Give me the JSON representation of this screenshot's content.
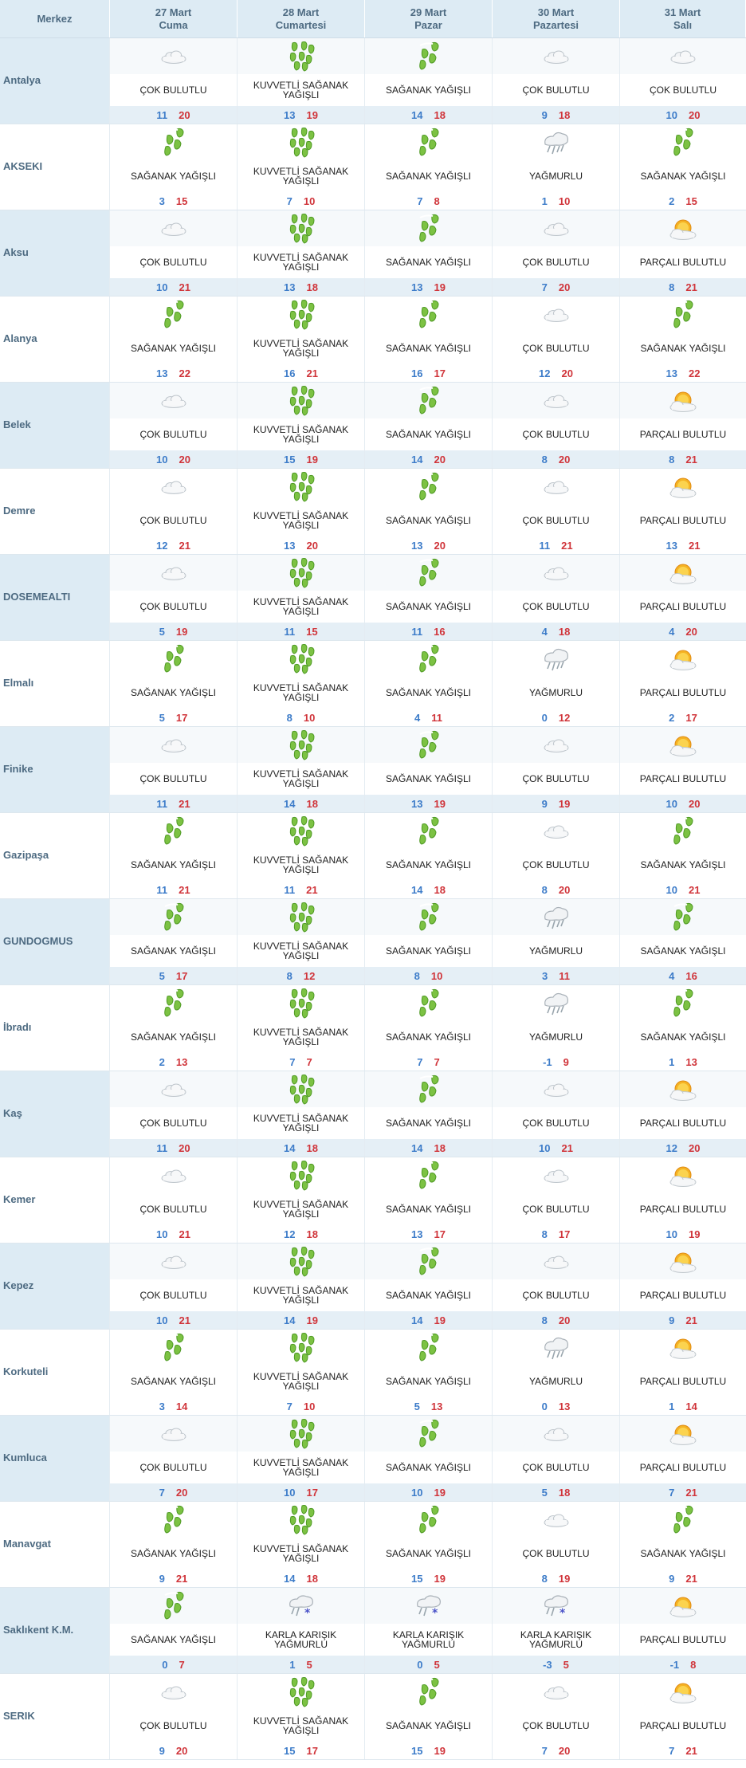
{
  "header": {
    "merkez": "Merkez",
    "days": [
      {
        "date": "27 Mart",
        "name": "Cuma"
      },
      {
        "date": "28 Mart",
        "name": "Cumartesi"
      },
      {
        "date": "29 Mart",
        "name": "Pazar"
      },
      {
        "date": "30 Mart",
        "name": "Pazartesi"
      },
      {
        "date": "31 Mart",
        "name": "Salı"
      }
    ]
  },
  "colors": {
    "low": "#3d7cc9",
    "high": "#d0343a",
    "header_bg": "#ddebf4",
    "city_text": "#4e6b82"
  },
  "rows": [
    {
      "city": "Antalya",
      "days": [
        {
          "icon": "cloud-icon",
          "desc": "ÇOK BULUTLU",
          "lo": "11",
          "hi": "20"
        },
        {
          "icon": "heavy-rain-icon",
          "desc": "KUVVETLİ SAĞANAK YAĞIŞLI",
          "lo": "13",
          "hi": "19"
        },
        {
          "icon": "rain-shower-icon",
          "desc": "SAĞANAK YAĞIŞLI",
          "lo": "14",
          "hi": "18"
        },
        {
          "icon": "cloud-icon",
          "desc": "ÇOK BULUTLU",
          "lo": "9",
          "hi": "18"
        },
        {
          "icon": "cloud-icon",
          "desc": "ÇOK BULUTLU",
          "lo": "10",
          "hi": "20"
        }
      ]
    },
    {
      "city": "AKSEKI",
      "days": [
        {
          "icon": "rain-shower-icon",
          "desc": "SAĞANAK YAĞIŞLI",
          "lo": "3",
          "hi": "15"
        },
        {
          "icon": "heavy-rain-icon",
          "desc": "KUVVETLİ SAĞANAK YAĞIŞLI",
          "lo": "7",
          "hi": "10"
        },
        {
          "icon": "rain-shower-icon",
          "desc": "SAĞANAK YAĞIŞLI",
          "lo": "7",
          "hi": "8"
        },
        {
          "icon": "rainy-cloud-icon",
          "desc": "YAĞMURLU",
          "lo": "1",
          "hi": "10"
        },
        {
          "icon": "rain-shower-icon",
          "desc": "SAĞANAK YAĞIŞLI",
          "lo": "2",
          "hi": "15"
        }
      ]
    },
    {
      "city": "Aksu",
      "days": [
        {
          "icon": "cloud-icon",
          "desc": "ÇOK BULUTLU",
          "lo": "10",
          "hi": "21"
        },
        {
          "icon": "heavy-rain-icon",
          "desc": "KUVVETLİ SAĞANAK YAĞIŞLI",
          "lo": "13",
          "hi": "18"
        },
        {
          "icon": "rain-shower-icon",
          "desc": "SAĞANAK YAĞIŞLI",
          "lo": "13",
          "hi": "19"
        },
        {
          "icon": "cloud-icon",
          "desc": "ÇOK BULUTLU",
          "lo": "7",
          "hi": "20"
        },
        {
          "icon": "partly-cloudy-icon",
          "desc": "PARÇALI BULUTLU",
          "lo": "8",
          "hi": "21"
        }
      ]
    },
    {
      "city": "Alanya",
      "days": [
        {
          "icon": "rain-shower-icon",
          "desc": "SAĞANAK YAĞIŞLI",
          "lo": "13",
          "hi": "22"
        },
        {
          "icon": "heavy-rain-icon",
          "desc": "KUVVETLİ SAĞANAK YAĞIŞLI",
          "lo": "16",
          "hi": "21"
        },
        {
          "icon": "rain-shower-icon",
          "desc": "SAĞANAK YAĞIŞLI",
          "lo": "16",
          "hi": "17"
        },
        {
          "icon": "cloud-icon",
          "desc": "ÇOK BULUTLU",
          "lo": "12",
          "hi": "20"
        },
        {
          "icon": "rain-shower-icon",
          "desc": "SAĞANAK YAĞIŞLI",
          "lo": "13",
          "hi": "22"
        }
      ]
    },
    {
      "city": "Belek",
      "days": [
        {
          "icon": "cloud-icon",
          "desc": "ÇOK BULUTLU",
          "lo": "10",
          "hi": "20"
        },
        {
          "icon": "heavy-rain-icon",
          "desc": "KUVVETLİ SAĞANAK YAĞIŞLI",
          "lo": "15",
          "hi": "19"
        },
        {
          "icon": "rain-shower-icon",
          "desc": "SAĞANAK YAĞIŞLI",
          "lo": "14",
          "hi": "20"
        },
        {
          "icon": "cloud-icon",
          "desc": "ÇOK BULUTLU",
          "lo": "8",
          "hi": "20"
        },
        {
          "icon": "partly-cloudy-icon",
          "desc": "PARÇALI BULUTLU",
          "lo": "8",
          "hi": "21"
        }
      ]
    },
    {
      "city": "Demre",
      "days": [
        {
          "icon": "cloud-icon",
          "desc": "ÇOK BULUTLU",
          "lo": "12",
          "hi": "21"
        },
        {
          "icon": "heavy-rain-icon",
          "desc": "KUVVETLİ SAĞANAK YAĞIŞLI",
          "lo": "13",
          "hi": "20"
        },
        {
          "icon": "rain-shower-icon",
          "desc": "SAĞANAK YAĞIŞLI",
          "lo": "13",
          "hi": "20"
        },
        {
          "icon": "cloud-icon",
          "desc": "ÇOK BULUTLU",
          "lo": "11",
          "hi": "21"
        },
        {
          "icon": "partly-cloudy-icon",
          "desc": "PARÇALI BULUTLU",
          "lo": "13",
          "hi": "21"
        }
      ]
    },
    {
      "city": "DOSEMEALTI",
      "days": [
        {
          "icon": "cloud-icon",
          "desc": "ÇOK BULUTLU",
          "lo": "5",
          "hi": "19"
        },
        {
          "icon": "heavy-rain-icon",
          "desc": "KUVVETLİ SAĞANAK YAĞIŞLI",
          "lo": "11",
          "hi": "15"
        },
        {
          "icon": "rain-shower-icon",
          "desc": "SAĞANAK YAĞIŞLI",
          "lo": "11",
          "hi": "16"
        },
        {
          "icon": "cloud-icon",
          "desc": "ÇOK BULUTLU",
          "lo": "4",
          "hi": "18"
        },
        {
          "icon": "partly-cloudy-icon",
          "desc": "PARÇALI BULUTLU",
          "lo": "4",
          "hi": "20"
        }
      ]
    },
    {
      "city": "Elmalı",
      "days": [
        {
          "icon": "rain-shower-icon",
          "desc": "SAĞANAK YAĞIŞLI",
          "lo": "5",
          "hi": "17"
        },
        {
          "icon": "heavy-rain-icon",
          "desc": "KUVVETLİ SAĞANAK YAĞIŞLI",
          "lo": "8",
          "hi": "10"
        },
        {
          "icon": "rain-shower-icon",
          "desc": "SAĞANAK YAĞIŞLI",
          "lo": "4",
          "hi": "11"
        },
        {
          "icon": "rainy-cloud-icon",
          "desc": "YAĞMURLU",
          "lo": "0",
          "hi": "12"
        },
        {
          "icon": "partly-cloudy-icon",
          "desc": "PARÇALI BULUTLU",
          "lo": "2",
          "hi": "17"
        }
      ]
    },
    {
      "city": "Finike",
      "days": [
        {
          "icon": "cloud-icon",
          "desc": "ÇOK BULUTLU",
          "lo": "11",
          "hi": "21"
        },
        {
          "icon": "heavy-rain-icon",
          "desc": "KUVVETLİ SAĞANAK YAĞIŞLI",
          "lo": "14",
          "hi": "18"
        },
        {
          "icon": "rain-shower-icon",
          "desc": "SAĞANAK YAĞIŞLI",
          "lo": "13",
          "hi": "19"
        },
        {
          "icon": "cloud-icon",
          "desc": "ÇOK BULUTLU",
          "lo": "9",
          "hi": "19"
        },
        {
          "icon": "partly-cloudy-icon",
          "desc": "PARÇALI BULUTLU",
          "lo": "10",
          "hi": "20"
        }
      ]
    },
    {
      "city": "Gazipaşa",
      "days": [
        {
          "icon": "rain-shower-icon",
          "desc": "SAĞANAK YAĞIŞLI",
          "lo": "11",
          "hi": "21"
        },
        {
          "icon": "heavy-rain-icon",
          "desc": "KUVVETLİ SAĞANAK YAĞIŞLI",
          "lo": "11",
          "hi": "21"
        },
        {
          "icon": "rain-shower-icon",
          "desc": "SAĞANAK YAĞIŞLI",
          "lo": "14",
          "hi": "18"
        },
        {
          "icon": "cloud-icon",
          "desc": "ÇOK BULUTLU",
          "lo": "8",
          "hi": "20"
        },
        {
          "icon": "rain-shower-icon",
          "desc": "SAĞANAK YAĞIŞLI",
          "lo": "10",
          "hi": "21"
        }
      ]
    },
    {
      "city": "GUNDOGMUS",
      "days": [
        {
          "icon": "rain-shower-icon",
          "desc": "SAĞANAK YAĞIŞLI",
          "lo": "5",
          "hi": "17"
        },
        {
          "icon": "heavy-rain-icon",
          "desc": "KUVVETLİ SAĞANAK YAĞIŞLI",
          "lo": "8",
          "hi": "12"
        },
        {
          "icon": "rain-shower-icon",
          "desc": "SAĞANAK YAĞIŞLI",
          "lo": "8",
          "hi": "10"
        },
        {
          "icon": "rainy-cloud-icon",
          "desc": "YAĞMURLU",
          "lo": "3",
          "hi": "11"
        },
        {
          "icon": "rain-shower-icon",
          "desc": "SAĞANAK YAĞIŞLI",
          "lo": "4",
          "hi": "16"
        }
      ]
    },
    {
      "city": "İbradı",
      "days": [
        {
          "icon": "rain-shower-icon",
          "desc": "SAĞANAK YAĞIŞLI",
          "lo": "2",
          "hi": "13"
        },
        {
          "icon": "heavy-rain-icon",
          "desc": "KUVVETLİ SAĞANAK YAĞIŞLI",
          "lo": "7",
          "hi": "7"
        },
        {
          "icon": "rain-shower-icon",
          "desc": "SAĞANAK YAĞIŞLI",
          "lo": "7",
          "hi": "7"
        },
        {
          "icon": "rainy-cloud-icon",
          "desc": "YAĞMURLU",
          "lo": "-1",
          "hi": "9"
        },
        {
          "icon": "rain-shower-icon",
          "desc": "SAĞANAK YAĞIŞLI",
          "lo": "1",
          "hi": "13"
        }
      ]
    },
    {
      "city": "Kaş",
      "days": [
        {
          "icon": "cloud-icon",
          "desc": "ÇOK BULUTLU",
          "lo": "11",
          "hi": "20"
        },
        {
          "icon": "heavy-rain-icon",
          "desc": "KUVVETLİ SAĞANAK YAĞIŞLI",
          "lo": "14",
          "hi": "18"
        },
        {
          "icon": "rain-shower-icon",
          "desc": "SAĞANAK YAĞIŞLI",
          "lo": "14",
          "hi": "18"
        },
        {
          "icon": "cloud-icon",
          "desc": "ÇOK BULUTLU",
          "lo": "10",
          "hi": "21"
        },
        {
          "icon": "partly-cloudy-icon",
          "desc": "PARÇALI BULUTLU",
          "lo": "12",
          "hi": "20"
        }
      ]
    },
    {
      "city": "Kemer",
      "days": [
        {
          "icon": "cloud-icon",
          "desc": "ÇOK BULUTLU",
          "lo": "10",
          "hi": "21"
        },
        {
          "icon": "heavy-rain-icon",
          "desc": "KUVVETLİ SAĞANAK YAĞIŞLI",
          "lo": "12",
          "hi": "18"
        },
        {
          "icon": "rain-shower-icon",
          "desc": "SAĞANAK YAĞIŞLI",
          "lo": "13",
          "hi": "17"
        },
        {
          "icon": "cloud-icon",
          "desc": "ÇOK BULUTLU",
          "lo": "8",
          "hi": "17"
        },
        {
          "icon": "partly-cloudy-icon",
          "desc": "PARÇALI BULUTLU",
          "lo": "10",
          "hi": "19"
        }
      ]
    },
    {
      "city": "Kepez",
      "days": [
        {
          "icon": "cloud-icon",
          "desc": "ÇOK BULUTLU",
          "lo": "10",
          "hi": "21"
        },
        {
          "icon": "heavy-rain-icon",
          "desc": "KUVVETLİ SAĞANAK YAĞIŞLI",
          "lo": "14",
          "hi": "19"
        },
        {
          "icon": "rain-shower-icon",
          "desc": "SAĞANAK YAĞIŞLI",
          "lo": "14",
          "hi": "19"
        },
        {
          "icon": "cloud-icon",
          "desc": "ÇOK BULUTLU",
          "lo": "8",
          "hi": "20"
        },
        {
          "icon": "partly-cloudy-icon",
          "desc": "PARÇALI BULUTLU",
          "lo": "9",
          "hi": "21"
        }
      ]
    },
    {
      "city": "Korkuteli",
      "days": [
        {
          "icon": "rain-shower-icon",
          "desc": "SAĞANAK YAĞIŞLI",
          "lo": "3",
          "hi": "14"
        },
        {
          "icon": "heavy-rain-icon",
          "desc": "KUVVETLİ SAĞANAK YAĞIŞLI",
          "lo": "7",
          "hi": "10"
        },
        {
          "icon": "rain-shower-icon",
          "desc": "SAĞANAK YAĞIŞLI",
          "lo": "5",
          "hi": "13"
        },
        {
          "icon": "rainy-cloud-icon",
          "desc": "YAĞMURLU",
          "lo": "0",
          "hi": "13"
        },
        {
          "icon": "partly-cloudy-icon",
          "desc": "PARÇALI BULUTLU",
          "lo": "1",
          "hi": "14"
        }
      ]
    },
    {
      "city": "Kumluca",
      "days": [
        {
          "icon": "cloud-icon",
          "desc": "ÇOK BULUTLU",
          "lo": "7",
          "hi": "20"
        },
        {
          "icon": "heavy-rain-icon",
          "desc": "KUVVETLİ SAĞANAK YAĞIŞLI",
          "lo": "10",
          "hi": "17"
        },
        {
          "icon": "rain-shower-icon",
          "desc": "SAĞANAK YAĞIŞLI",
          "lo": "10",
          "hi": "19"
        },
        {
          "icon": "cloud-icon",
          "desc": "ÇOK BULUTLU",
          "lo": "5",
          "hi": "18"
        },
        {
          "icon": "partly-cloudy-icon",
          "desc": "PARÇALI BULUTLU",
          "lo": "7",
          "hi": "21"
        }
      ]
    },
    {
      "city": "Manavgat",
      "days": [
        {
          "icon": "rain-shower-icon",
          "desc": "SAĞANAK YAĞIŞLI",
          "lo": "9",
          "hi": "21"
        },
        {
          "icon": "heavy-rain-icon",
          "desc": "KUVVETLİ SAĞANAK YAĞIŞLI",
          "lo": "14",
          "hi": "18"
        },
        {
          "icon": "rain-shower-icon",
          "desc": "SAĞANAK YAĞIŞLI",
          "lo": "15",
          "hi": "19"
        },
        {
          "icon": "cloud-icon",
          "desc": "ÇOK BULUTLU",
          "lo": "8",
          "hi": "19"
        },
        {
          "icon": "rain-shower-icon",
          "desc": "SAĞANAK YAĞIŞLI",
          "lo": "9",
          "hi": "21"
        }
      ]
    },
    {
      "city": "Saklıkent K.M.",
      "days": [
        {
          "icon": "rain-shower-icon",
          "desc": "SAĞANAK YAĞIŞLI",
          "lo": "0",
          "hi": "7"
        },
        {
          "icon": "sleet-icon",
          "desc": "KARLA KARIŞIK YAĞMURLU",
          "lo": "1",
          "hi": "5"
        },
        {
          "icon": "sleet-icon",
          "desc": "KARLA KARIŞIK YAĞMURLU",
          "lo": "0",
          "hi": "5"
        },
        {
          "icon": "sleet-icon",
          "desc": "KARLA KARIŞIK YAĞMURLU",
          "lo": "-3",
          "hi": "5"
        },
        {
          "icon": "partly-cloudy-icon",
          "desc": "PARÇALI BULUTLU",
          "lo": "-1",
          "hi": "8"
        }
      ]
    },
    {
      "city": "SERIK",
      "days": [
        {
          "icon": "cloud-icon",
          "desc": "ÇOK BULUTLU",
          "lo": "9",
          "hi": "20"
        },
        {
          "icon": "heavy-rain-icon",
          "desc": "KUVVETLİ SAĞANAK YAĞIŞLI",
          "lo": "15",
          "hi": "17"
        },
        {
          "icon": "rain-shower-icon",
          "desc": "SAĞANAK YAĞIŞLI",
          "lo": "15",
          "hi": "19"
        },
        {
          "icon": "cloud-icon",
          "desc": "ÇOK BULUTLU",
          "lo": "7",
          "hi": "20"
        },
        {
          "icon": "partly-cloudy-icon",
          "desc": "PARÇALI BULUTLU",
          "lo": "7",
          "hi": "21"
        }
      ]
    }
  ]
}
